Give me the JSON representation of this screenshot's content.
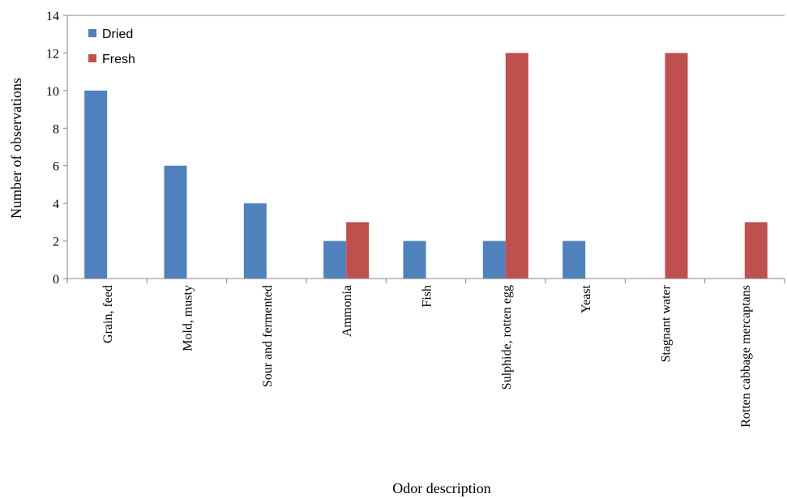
{
  "chart_data": {
    "type": "bar",
    "title": "",
    "xlabel": "Odor description",
    "ylabel": "Number of observations",
    "ylim": [
      0,
      14
    ],
    "yticks": [
      0,
      2,
      4,
      6,
      8,
      10,
      12,
      14
    ],
    "categories": [
      "Grain, feed",
      "Mold, musty",
      "Sour and fermented",
      "Ammonia",
      "Fish",
      "Sulphide, rotten egg",
      "Yeast",
      "Stagnant water",
      "Rotten cabbage mercaptans"
    ],
    "series": [
      {
        "name": "Dried",
        "color": "#4f81bd",
        "values": [
          10,
          6,
          4,
          2,
          2,
          2,
          2,
          0,
          0
        ]
      },
      {
        "name": "Fresh",
        "color": "#c0504d",
        "values": [
          0,
          0,
          0,
          3,
          0,
          12,
          0,
          12,
          3
        ]
      }
    ],
    "grid": false,
    "legend_position": "top-left"
  }
}
